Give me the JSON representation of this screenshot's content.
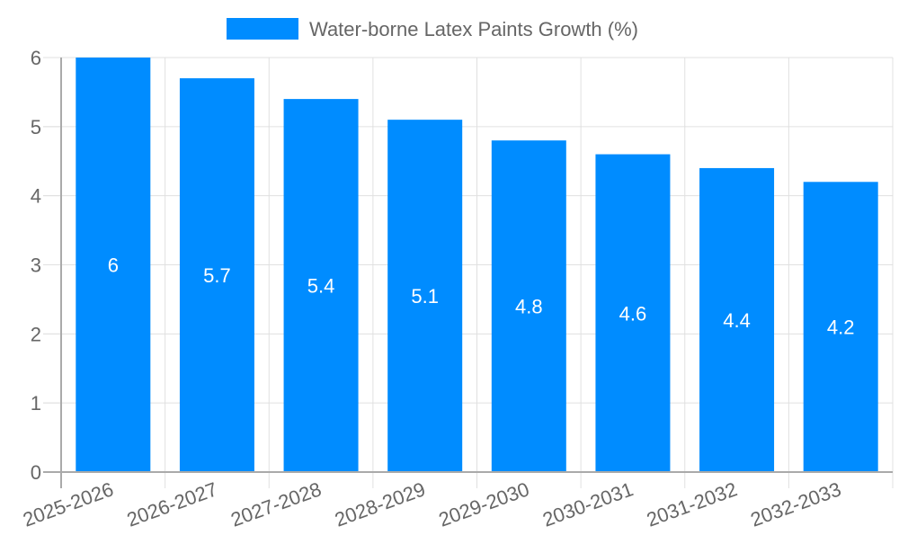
{
  "chart_data": {
    "type": "bar",
    "title": "",
    "legend": {
      "label": "Water-borne Latex Paints Growth (%)",
      "position": "top"
    },
    "categories": [
      "2025-2026",
      "2026-2027",
      "2027-2028",
      "2028-2029",
      "2029-2030",
      "2030-2031",
      "2031-2032",
      "2032-2033"
    ],
    "series": [
      {
        "name": "Water-borne Latex Paints Growth (%)",
        "values": [
          6,
          5.7,
          5.4,
          5.1,
          4.8,
          4.6,
          4.4,
          4.2
        ]
      }
    ],
    "data_labels": [
      "6",
      "5.7",
      "5.4",
      "5.1",
      "4.8",
      "4.6",
      "4.4",
      "4.2"
    ],
    "y_ticks": [
      "0",
      "1",
      "2",
      "3",
      "4",
      "5",
      "6"
    ],
    "xlabel": "",
    "ylabel": "",
    "ylim": [
      0,
      6
    ],
    "grid": true,
    "colors": {
      "bar": "#008cff",
      "grid": "#e0e0e0",
      "axis": "#aaaaaa",
      "text": "#666666",
      "label": "#ffffff"
    }
  }
}
